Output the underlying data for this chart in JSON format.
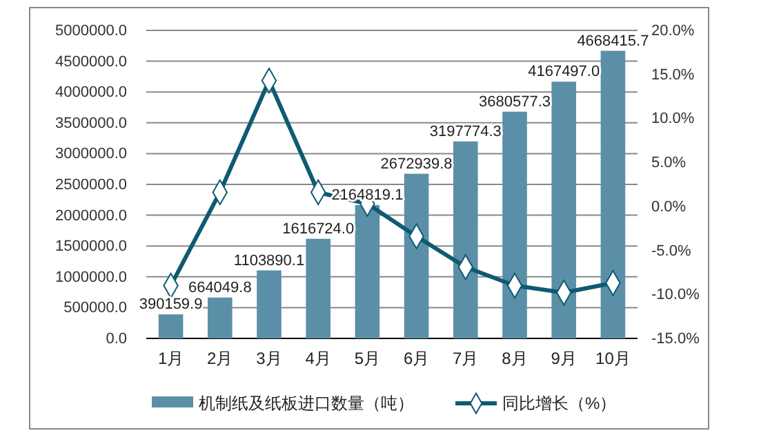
{
  "chart_data": {
    "type": "bar",
    "categories": [
      "1月",
      "2月",
      "3月",
      "4月",
      "5月",
      "6月",
      "7月",
      "8月",
      "9月",
      "10月"
    ],
    "series": [
      {
        "name": "机制纸及纸板进口数量（吨）",
        "color": "#5b8fa8",
        "values": [
          390159.9,
          664049.8,
          1103890.1,
          1616724.0,
          2164819.1,
          2672939.8,
          3197774.3,
          3680577.3,
          4167497.0,
          4668415.7
        ],
        "value_labels": [
          "390159.9",
          "664049.8",
          "1103890.1",
          "1616724.0",
          "2164819.1",
          "2672939.8",
          "3197774.3",
          "3680577.3",
          "4167497.0",
          "4668415.7"
        ]
      },
      {
        "name": "同比增长（%）",
        "type": "line",
        "axis": "y2",
        "color": "#0e5a73",
        "marker": "diamond",
        "values": [
          -9.0,
          1.6,
          14.3,
          1.6,
          0.3,
          -3.4,
          -6.9,
          -9.0,
          -9.8,
          -8.7
        ]
      }
    ],
    "ylim": [
      0,
      5000000
    ],
    "yticks": [
      {
        "value": 0,
        "label": "0.0"
      },
      {
        "value": 500000,
        "label": "500000.0"
      },
      {
        "value": 1000000,
        "label": "1000000.0"
      },
      {
        "value": 1500000,
        "label": "1500000.0"
      },
      {
        "value": 2000000,
        "label": "2000000.0"
      },
      {
        "value": 2500000,
        "label": "2500000.0"
      },
      {
        "value": 3000000,
        "label": "3000000.0"
      },
      {
        "value": 3500000,
        "label": "3500000.0"
      },
      {
        "value": 4000000,
        "label": "4000000.0"
      },
      {
        "value": 4500000,
        "label": "4500000.0"
      },
      {
        "value": 5000000,
        "label": "5000000.0"
      }
    ],
    "y2lim": [
      -15,
      20
    ],
    "y2ticks": [
      {
        "value": -15,
        "label": "-15.0%"
      },
      {
        "value": -10,
        "label": "-10.0%"
      },
      {
        "value": -5,
        "label": "-5.0%"
      },
      {
        "value": 0,
        "label": "0.0%"
      },
      {
        "value": 5,
        "label": "5.0%"
      },
      {
        "value": 10,
        "label": "10.0%"
      },
      {
        "value": 15,
        "label": "15.0%"
      },
      {
        "value": 20,
        "label": "20.0%"
      }
    ],
    "grid": "y",
    "legend": "bottom"
  }
}
